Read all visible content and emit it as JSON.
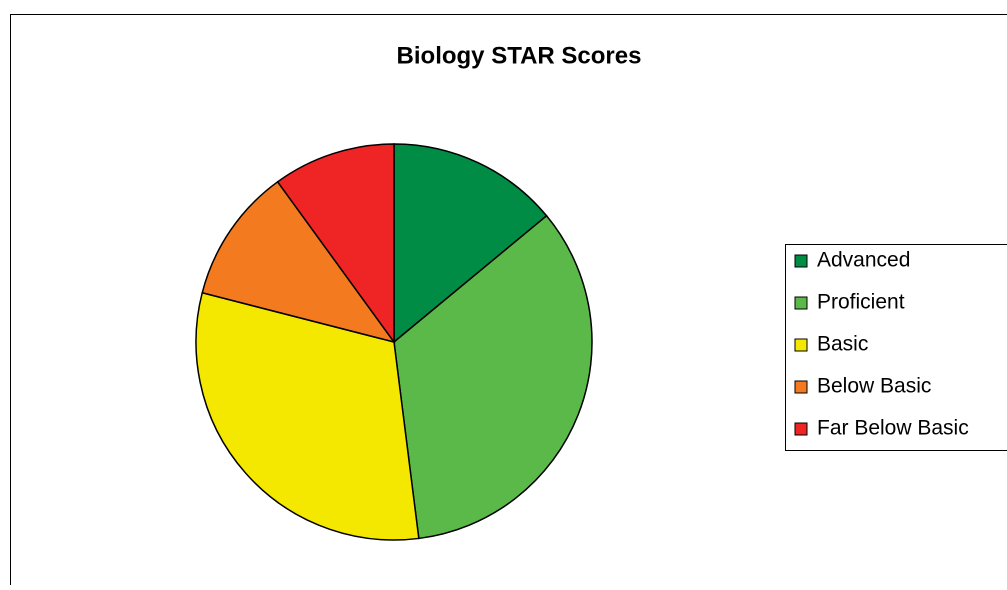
{
  "chart_data": {
    "type": "pie",
    "title": "Biology STAR Scores",
    "categories": [
      "Advanced",
      "Proficient",
      "Basic",
      "Below Basic",
      "Far Below Basic"
    ],
    "values": [
      14,
      34,
      31,
      11,
      10
    ],
    "colors": [
      "#008c45",
      "#5bb94a",
      "#f5e800",
      "#f47a20",
      "#ee2524"
    ],
    "legend": "right"
  }
}
